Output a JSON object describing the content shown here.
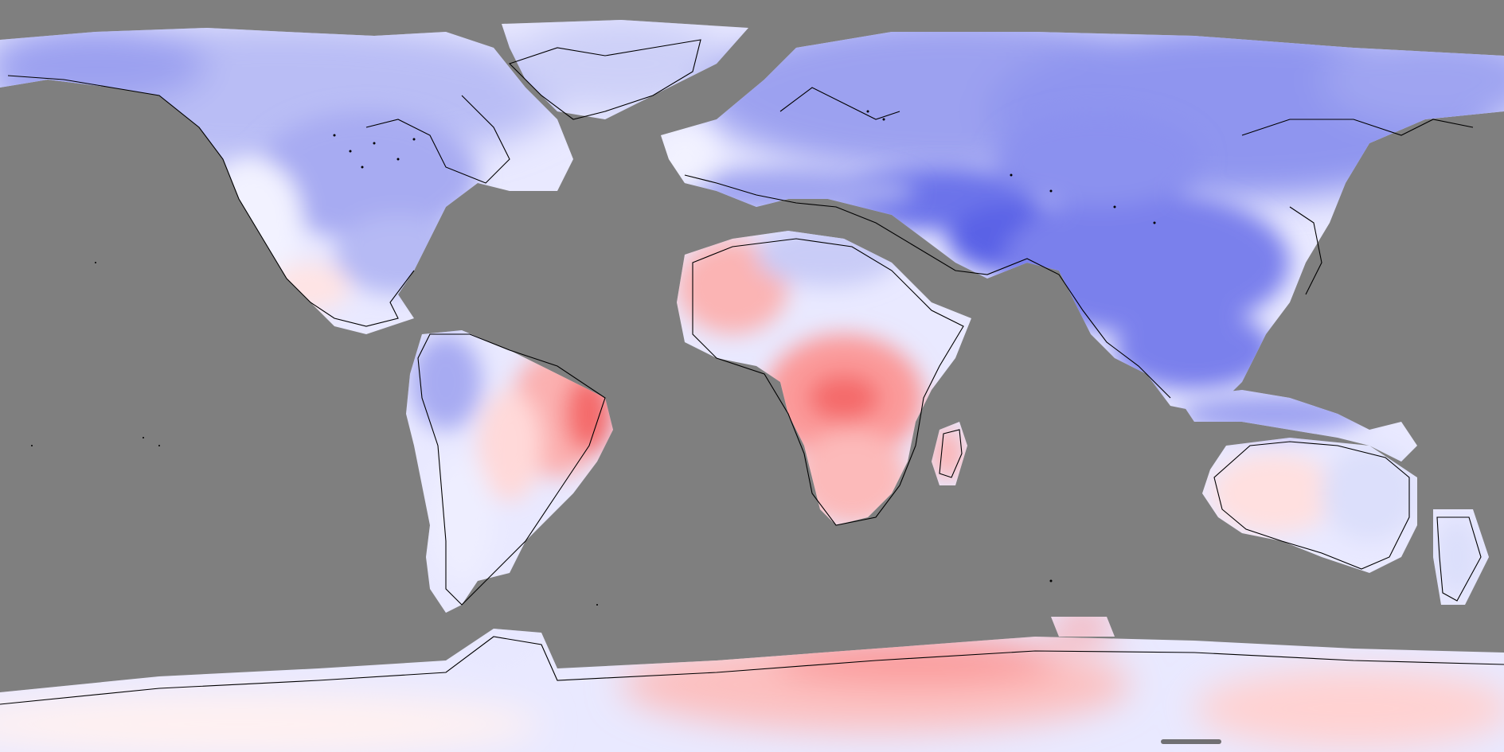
{
  "map": {
    "projection": "equirectangular",
    "ocean_color": "#7f7f7f",
    "coastline_color": "#000000",
    "color_scale": {
      "strong_cold": "#5a62e6",
      "cold": "#8f95ef",
      "cool": "#c5c8f7",
      "neutral": "#f6f6ff",
      "warm": "#ffd2d2",
      "hot": "#fb9a9a",
      "strong_hot": "#f46a6a"
    }
  },
  "scrollbar": {
    "visible": true,
    "color": "#5a5a5a"
  }
}
